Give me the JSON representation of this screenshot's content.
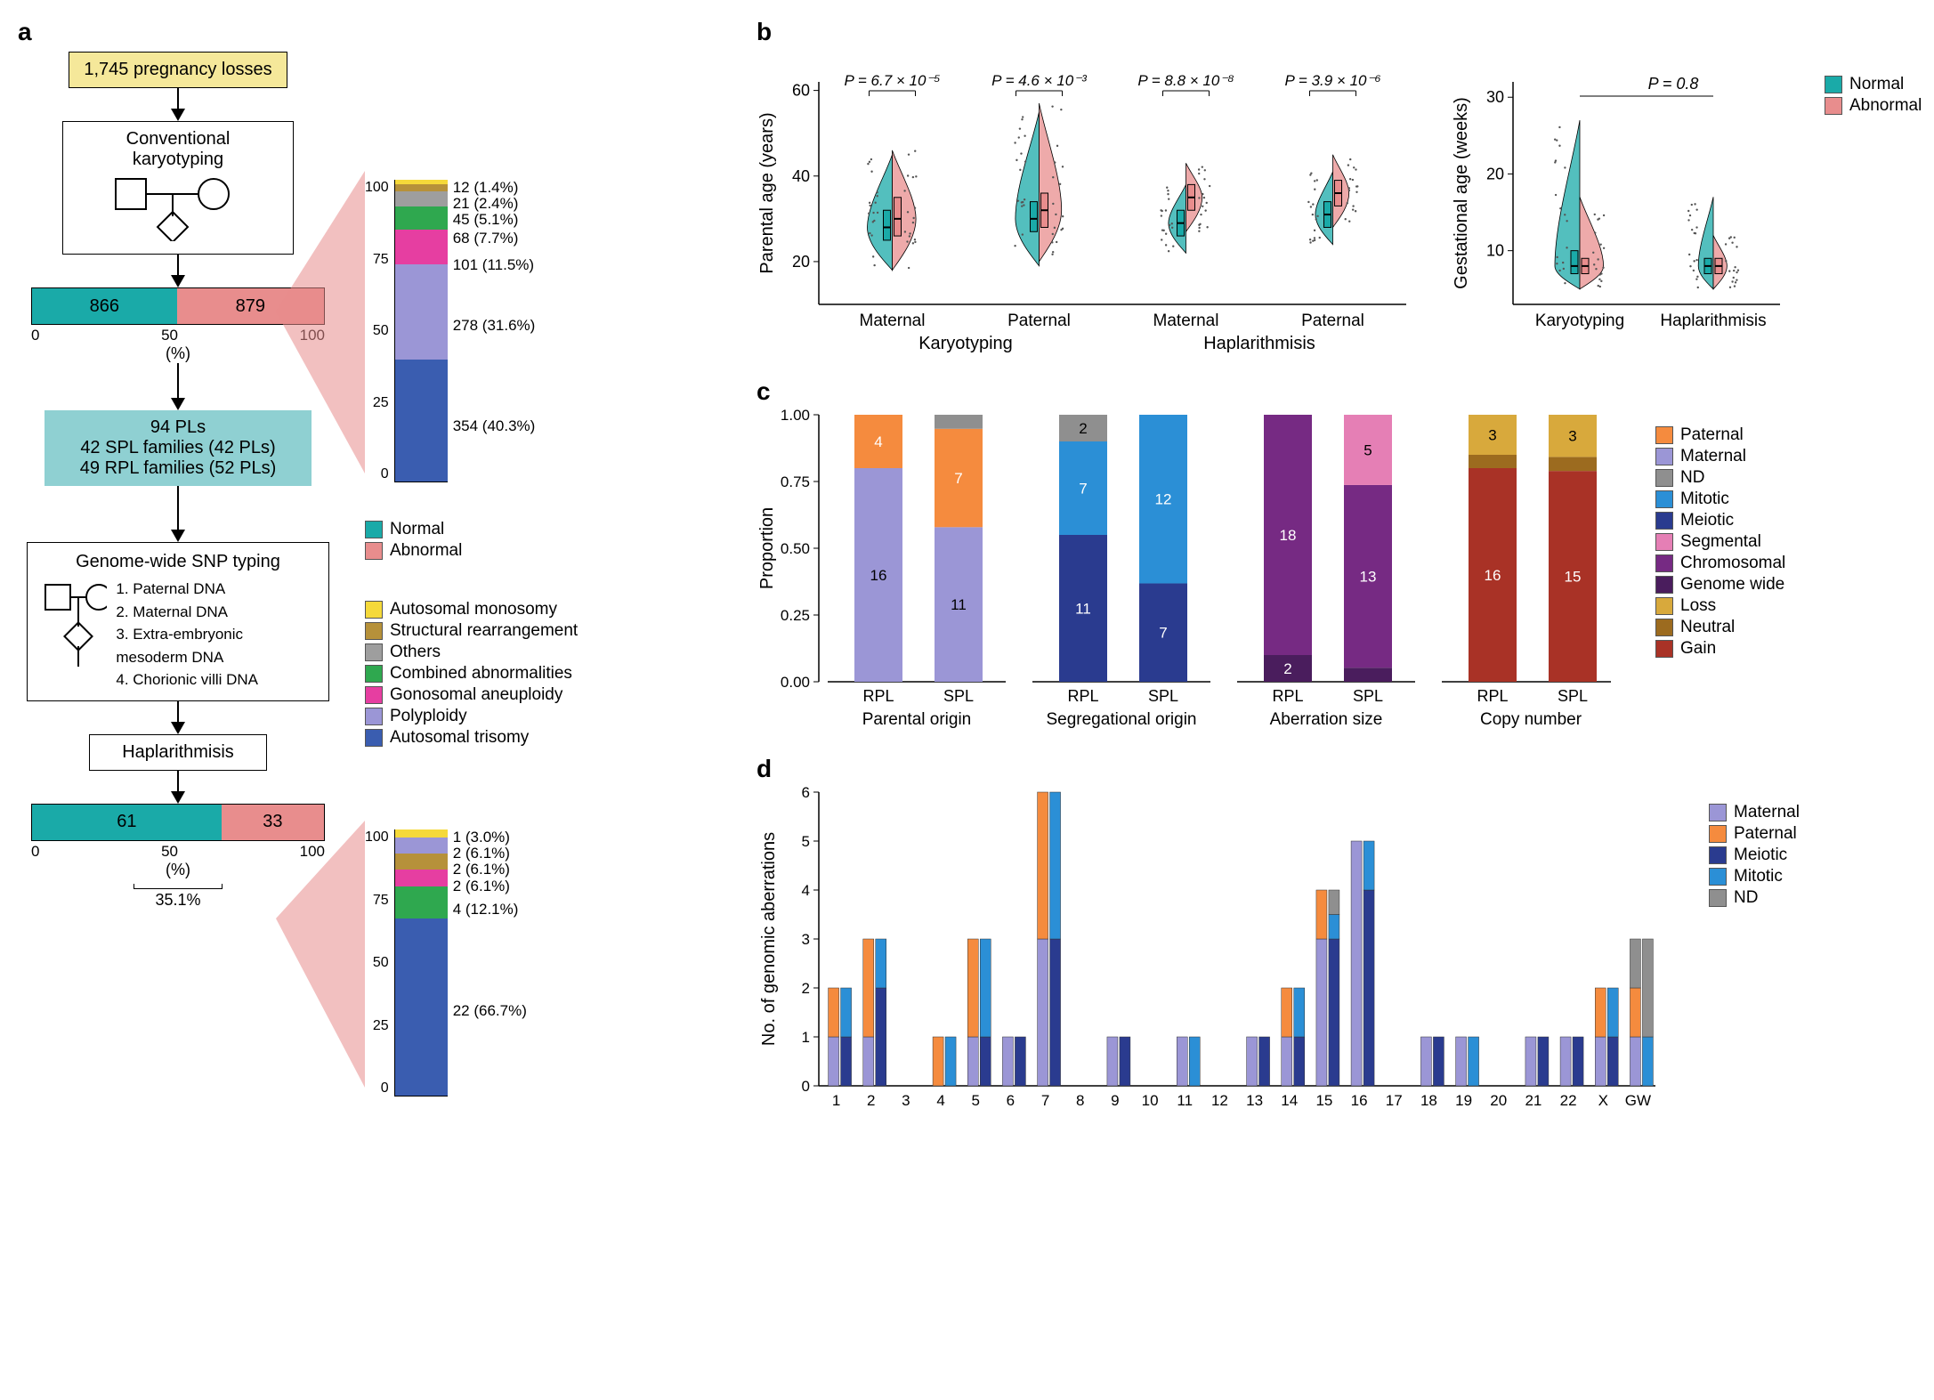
{
  "palette": {
    "normal": "#1aaaa8",
    "abnormal": "#e88d8d",
    "autosomal_monosomy": "#f5d93a",
    "structural_rearrangement": "#b6913a",
    "others": "#9e9e9e",
    "combined": "#2fa84f",
    "gonosomal": "#e63ea1",
    "polyploidy": "#9b96d6",
    "autosomal_trisomy": "#3a5db0",
    "paternal": "#f58b3e",
    "maternal": "#9b96d6",
    "nd": "#8f8f8f",
    "mitotic": "#2b8fd6",
    "meiotic": "#2a3b8f",
    "segmental": "#e57fb5",
    "chromosomal": "#762a83",
    "genome_wide": "#4a1d5d",
    "loss": "#d8a93c",
    "neutral": "#9c6b1f",
    "gain": "#a93226",
    "bg": "#ffffff",
    "axis": "#000000"
  },
  "panel_labels": {
    "a": "a",
    "b": "b",
    "c": "c",
    "d": "d"
  },
  "panel_a": {
    "start_box": {
      "text": "1,745 pregnancy losses",
      "bg": "#f5e89a"
    },
    "karyotyping_box": "Conventional\nkaryotyping",
    "bar1": {
      "normal": 866,
      "abnormal": 879,
      "normal_pct": 49.6,
      "xlabel": "(%)",
      "xticks": [
        0,
        50,
        100
      ]
    },
    "stacked1": {
      "height": 100,
      "items": [
        {
          "label": "354 (40.3%)",
          "pct": 40.3,
          "key": "autosomal_trisomy"
        },
        {
          "label": "278 (31.6%)",
          "pct": 31.6,
          "key": "polyploidy"
        },
        {
          "label": "101 (11.5%)",
          "pct": 11.5,
          "key": "gonosomal"
        },
        {
          "label": "68 (7.7%)",
          "pct": 7.7,
          "key": "combined"
        },
        {
          "label": "45 (5.1%)",
          "pct": 5.1,
          "key": "others"
        },
        {
          "label": "21 (2.4%)",
          "pct": 2.4,
          "key": "structural_rearrangement"
        },
        {
          "label": "12 (1.4%)",
          "pct": 1.4,
          "key": "autosomal_monosomy"
        }
      ],
      "yticks": [
        0,
        25,
        50,
        75,
        100
      ]
    },
    "subset_box": {
      "bg": "#8fd0d2",
      "lines": [
        "94 PLs",
        "42 SPL families (42 PLs)",
        "49 RPL families (52 PLs)"
      ]
    },
    "snp_box": {
      "title": "Genome-wide SNP typing",
      "items": [
        "1. Paternal DNA",
        "2. Maternal DNA",
        "3. Extra-embryonic mesoderm DNA",
        "4. Chorionic villi DNA"
      ]
    },
    "haplarithmisis_box": "Haplarithmisis",
    "bar2": {
      "normal": 61,
      "abnormal": 33,
      "normal_pct": 64.9,
      "xlabel": "(%)",
      "xticks": [
        0,
        50,
        100
      ],
      "bracket": "35.1%"
    },
    "stacked2": {
      "items": [
        {
          "label": "22 (66.7%)",
          "pct": 66.7,
          "key": "autosomal_trisomy"
        },
        {
          "label": "4 (12.1%)",
          "pct": 12.1,
          "key": "combined"
        },
        {
          "label": "2 (6.1%)",
          "pct": 6.1,
          "key": "gonosomal"
        },
        {
          "label": "2 (6.1%)",
          "pct": 6.1,
          "key": "structural_rearrangement"
        },
        {
          "label": "2 (6.1%)",
          "pct": 6.1,
          "key": "polyploidy"
        },
        {
          "label": "1 (3.0%)",
          "pct": 3.0,
          "key": "autosomal_monosomy"
        }
      ],
      "yticks": [
        0,
        25,
        50,
        75,
        100
      ]
    },
    "legend_main": [
      {
        "key": "normal",
        "label": "Normal"
      },
      {
        "key": "abnormal",
        "label": "Abnormal"
      }
    ],
    "legend_aberrations": [
      {
        "key": "autosomal_monosomy",
        "label": "Autosomal monosomy"
      },
      {
        "key": "structural_rearrangement",
        "label": "Structural rearrangement"
      },
      {
        "key": "others",
        "label": "Others"
      },
      {
        "key": "combined",
        "label": "Combined abnormalities"
      },
      {
        "key": "gonosomal",
        "label": "Gonosomal aneuploidy"
      },
      {
        "key": "polyploidy",
        "label": "Polyploidy"
      },
      {
        "key": "autosomal_trisomy",
        "label": "Autosomal trisomy"
      }
    ]
  },
  "panel_b": {
    "left": {
      "ylabel": "Parental age (years)",
      "ylim": [
        10,
        62
      ],
      "yticks": [
        20,
        40,
        60
      ],
      "groups": [
        {
          "label": "Maternal",
          "super": "Karyotyping",
          "pval": "P = 6.7 × 10⁻⁵",
          "normal": {
            "median": 28,
            "q1": 25,
            "q3": 32,
            "min": 18,
            "max": 45,
            "width": 1.0
          },
          "abnormal": {
            "median": 30,
            "q1": 26,
            "q3": 35,
            "min": 18,
            "max": 46,
            "width": 0.95
          }
        },
        {
          "label": "Paternal",
          "super": "Karyotyping",
          "pval": "P = 4.6 × 10⁻³",
          "normal": {
            "median": 30,
            "q1": 27,
            "q3": 34,
            "min": 19,
            "max": 55,
            "width": 0.95
          },
          "abnormal": {
            "median": 32,
            "q1": 28,
            "q3": 36,
            "min": 20,
            "max": 57,
            "width": 0.9
          }
        },
        {
          "label": "Maternal",
          "super": "Haplarithmisis",
          "pval": "P = 8.8 × 10⁻⁸",
          "normal": {
            "median": 29,
            "q1": 26,
            "q3": 32,
            "min": 22,
            "max": 38,
            "width": 0.7
          },
          "abnormal": {
            "median": 35,
            "q1": 32,
            "q3": 38,
            "min": 27,
            "max": 43,
            "width": 0.65
          }
        },
        {
          "label": "Paternal",
          "super": "Haplarithmisis",
          "pval": "P = 3.9 × 10⁻⁶",
          "normal": {
            "median": 31,
            "q1": 28,
            "q3": 34,
            "min": 24,
            "max": 41,
            "width": 0.7
          },
          "abnormal": {
            "median": 36,
            "q1": 33,
            "q3": 39,
            "min": 28,
            "max": 45,
            "width": 0.65
          }
        }
      ]
    },
    "right": {
      "ylabel": "Gestational age (weeks)",
      "ylim": [
        3,
        32
      ],
      "yticks": [
        10,
        20,
        30
      ],
      "pval": "P = 0.8",
      "groups": [
        {
          "label": "Karyotyping",
          "normal": {
            "median": 8,
            "q1": 7,
            "q3": 10,
            "min": 5,
            "max": 27,
            "width": 1.0
          },
          "abnormal": {
            "median": 8,
            "q1": 7,
            "q3": 9,
            "min": 5,
            "max": 17,
            "width": 0.95
          }
        },
        {
          "label": "Haplarithmisis",
          "normal": {
            "median": 8,
            "q1": 7,
            "q3": 9,
            "min": 5,
            "max": 17,
            "width": 0.6
          },
          "abnormal": {
            "median": 8,
            "q1": 7,
            "q3": 9,
            "min": 5,
            "max": 12,
            "width": 0.55
          }
        }
      ]
    },
    "legend": [
      {
        "key": "normal",
        "label": "Normal"
      },
      {
        "key": "abnormal",
        "label": "Abnormal"
      }
    ]
  },
  "panel_c": {
    "ylabel": "Proportion",
    "ylim": [
      0,
      1
    ],
    "yticks": [
      0,
      0.25,
      0.5,
      0.75,
      1.0
    ],
    "x_groups": [
      "RPL",
      "SPL"
    ],
    "subpanels": [
      {
        "title": "Parental origin",
        "palette_keys": [
          "maternal",
          "paternal",
          "nd"
        ],
        "data": {
          "RPL": [
            {
              "n": 16,
              "k": "maternal"
            },
            {
              "n": 4,
              "k": "paternal"
            }
          ],
          "SPL": [
            {
              "n": 11,
              "k": "maternal"
            },
            {
              "n": 7,
              "k": "paternal"
            },
            {
              "n": 1,
              "k": "nd"
            }
          ]
        }
      },
      {
        "title": "Segregational origin",
        "palette_keys": [
          "meiotic",
          "mitotic",
          "nd"
        ],
        "data": {
          "RPL": [
            {
              "n": 11,
              "k": "meiotic"
            },
            {
              "n": 7,
              "k": "mitotic"
            },
            {
              "n": 2,
              "k": "nd"
            }
          ],
          "SPL": [
            {
              "n": 7,
              "k": "meiotic"
            },
            {
              "n": 12,
              "k": "mitotic"
            }
          ]
        }
      },
      {
        "title": "Aberration size",
        "palette_keys": [
          "genome_wide",
          "chromosomal",
          "segmental"
        ],
        "data": {
          "RPL": [
            {
              "n": 2,
              "k": "genome_wide"
            },
            {
              "n": 18,
              "k": "chromosomal"
            }
          ],
          "SPL": [
            {
              "n": 1,
              "k": "genome_wide"
            },
            {
              "n": 13,
              "k": "chromosomal"
            },
            {
              "n": 5,
              "k": "segmental"
            }
          ]
        }
      },
      {
        "title": "Copy number",
        "palette_keys": [
          "gain",
          "neutral",
          "loss"
        ],
        "data": {
          "RPL": [
            {
              "n": 16,
              "k": "gain"
            },
            {
              "n": 1,
              "k": "neutral"
            },
            {
              "n": 3,
              "k": "loss"
            }
          ],
          "SPL": [
            {
              "n": 15,
              "k": "gain"
            },
            {
              "n": 1,
              "k": "neutral"
            },
            {
              "n": 3,
              "k": "loss"
            }
          ]
        }
      }
    ],
    "legend": [
      {
        "key": "paternal",
        "label": "Paternal"
      },
      {
        "key": "maternal",
        "label": "Maternal"
      },
      {
        "key": "nd",
        "label": "ND"
      },
      {
        "key": "mitotic",
        "label": "Mitotic"
      },
      {
        "key": "meiotic",
        "label": "Meiotic"
      },
      {
        "key": "segmental",
        "label": "Segmental"
      },
      {
        "key": "chromosomal",
        "label": "Chromosomal"
      },
      {
        "key": "genome_wide",
        "label": "Genome wide"
      },
      {
        "key": "loss",
        "label": "Loss"
      },
      {
        "key": "neutral",
        "label": "Neutral"
      },
      {
        "key": "gain",
        "label": "Gain"
      }
    ]
  },
  "panel_d": {
    "ylabel": "No. of genomic aberrations",
    "ylim": [
      0,
      6
    ],
    "yticks": [
      0,
      1,
      2,
      3,
      4,
      5,
      6
    ],
    "x_categories": [
      "1",
      "2",
      "3",
      "4",
      "5",
      "6",
      "7",
      "8",
      "9",
      "10",
      "11",
      "12",
      "13",
      "14",
      "15",
      "16",
      "17",
      "18",
      "19",
      "20",
      "21",
      "22",
      "X",
      "GW"
    ],
    "legend": [
      {
        "key": "maternal",
        "label": "Maternal"
      },
      {
        "key": "paternal",
        "label": "Paternal"
      },
      {
        "key": "meiotic",
        "label": "Meiotic"
      },
      {
        "key": "mitotic",
        "label": "Mitotic"
      },
      {
        "key": "nd",
        "label": "ND"
      }
    ],
    "data": {
      "1": {
        "origin": [
          {
            "n": 1,
            "k": "maternal"
          },
          {
            "n": 1,
            "k": "paternal"
          }
        ],
        "seg": [
          {
            "n": 1,
            "k": "meiotic"
          },
          {
            "n": 1,
            "k": "mitotic"
          }
        ]
      },
      "2": {
        "origin": [
          {
            "n": 1,
            "k": "maternal"
          },
          {
            "n": 2,
            "k": "paternal"
          }
        ],
        "seg": [
          {
            "n": 2,
            "k": "meiotic"
          },
          {
            "n": 1,
            "k": "mitotic"
          }
        ]
      },
      "3": {
        "origin": [],
        "seg": []
      },
      "4": {
        "origin": [
          {
            "n": 1,
            "k": "paternal"
          }
        ],
        "seg": [
          {
            "n": 1,
            "k": "mitotic"
          }
        ]
      },
      "5": {
        "origin": [
          {
            "n": 1,
            "k": "maternal"
          },
          {
            "n": 2,
            "k": "paternal"
          }
        ],
        "seg": [
          {
            "n": 1,
            "k": "meiotic"
          },
          {
            "n": 2,
            "k": "mitotic"
          }
        ]
      },
      "6": {
        "origin": [
          {
            "n": 1,
            "k": "maternal"
          }
        ],
        "seg": [
          {
            "n": 1,
            "k": "meiotic"
          }
        ]
      },
      "7": {
        "origin": [
          {
            "n": 3,
            "k": "maternal"
          },
          {
            "n": 3,
            "k": "paternal"
          }
        ],
        "seg": [
          {
            "n": 3,
            "k": "meiotic"
          },
          {
            "n": 3,
            "k": "mitotic"
          }
        ]
      },
      "8": {
        "origin": [],
        "seg": []
      },
      "9": {
        "origin": [
          {
            "n": 1,
            "k": "maternal"
          }
        ],
        "seg": [
          {
            "n": 1,
            "k": "meiotic"
          }
        ]
      },
      "10": {
        "origin": [],
        "seg": []
      },
      "11": {
        "origin": [
          {
            "n": 1,
            "k": "maternal"
          }
        ],
        "seg": [
          {
            "n": 1,
            "k": "mitotic"
          }
        ]
      },
      "12": {
        "origin": [],
        "seg": []
      },
      "13": {
        "origin": [
          {
            "n": 1,
            "k": "maternal"
          }
        ],
        "seg": [
          {
            "n": 1,
            "k": "meiotic"
          }
        ]
      },
      "14": {
        "origin": [
          {
            "n": 1,
            "k": "maternal"
          },
          {
            "n": 1,
            "k": "paternal"
          }
        ],
        "seg": [
          {
            "n": 1,
            "k": "meiotic"
          },
          {
            "n": 1,
            "k": "mitotic"
          }
        ]
      },
      "15": {
        "origin": [
          {
            "n": 3,
            "k": "maternal"
          },
          {
            "n": 1,
            "k": "paternal"
          }
        ],
        "seg": [
          {
            "n": 3,
            "k": "meiotic"
          },
          {
            "n": 0.5,
            "k": "mitotic"
          },
          {
            "n": 0.5,
            "k": "nd"
          }
        ]
      },
      "16": {
        "origin": [
          {
            "n": 5,
            "k": "maternal"
          }
        ],
        "seg": [
          {
            "n": 4,
            "k": "meiotic"
          },
          {
            "n": 1,
            "k": "mitotic"
          }
        ]
      },
      "17": {
        "origin": [],
        "seg": []
      },
      "18": {
        "origin": [
          {
            "n": 1,
            "k": "maternal"
          }
        ],
        "seg": [
          {
            "n": 1,
            "k": "meiotic"
          }
        ]
      },
      "19": {
        "origin": [
          {
            "n": 1,
            "k": "maternal"
          }
        ],
        "seg": [
          {
            "n": 1,
            "k": "mitotic"
          }
        ]
      },
      "20": {
        "origin": [],
        "seg": []
      },
      "21": {
        "origin": [
          {
            "n": 1,
            "k": "maternal"
          }
        ],
        "seg": [
          {
            "n": 1,
            "k": "meiotic"
          }
        ]
      },
      "22": {
        "origin": [
          {
            "n": 1,
            "k": "maternal"
          }
        ],
        "seg": [
          {
            "n": 1,
            "k": "meiotic"
          }
        ]
      },
      "X": {
        "origin": [
          {
            "n": 1,
            "k": "maternal"
          },
          {
            "n": 1,
            "k": "paternal"
          }
        ],
        "seg": [
          {
            "n": 1,
            "k": "meiotic"
          },
          {
            "n": 1,
            "k": "mitotic"
          }
        ]
      },
      "GW": {
        "origin": [
          {
            "n": 1,
            "k": "maternal"
          },
          {
            "n": 1,
            "k": "paternal"
          },
          {
            "n": 1,
            "k": "nd"
          }
        ],
        "seg": [
          {
            "n": 1,
            "k": "mitotic"
          },
          {
            "n": 2,
            "k": "nd"
          }
        ]
      }
    }
  }
}
